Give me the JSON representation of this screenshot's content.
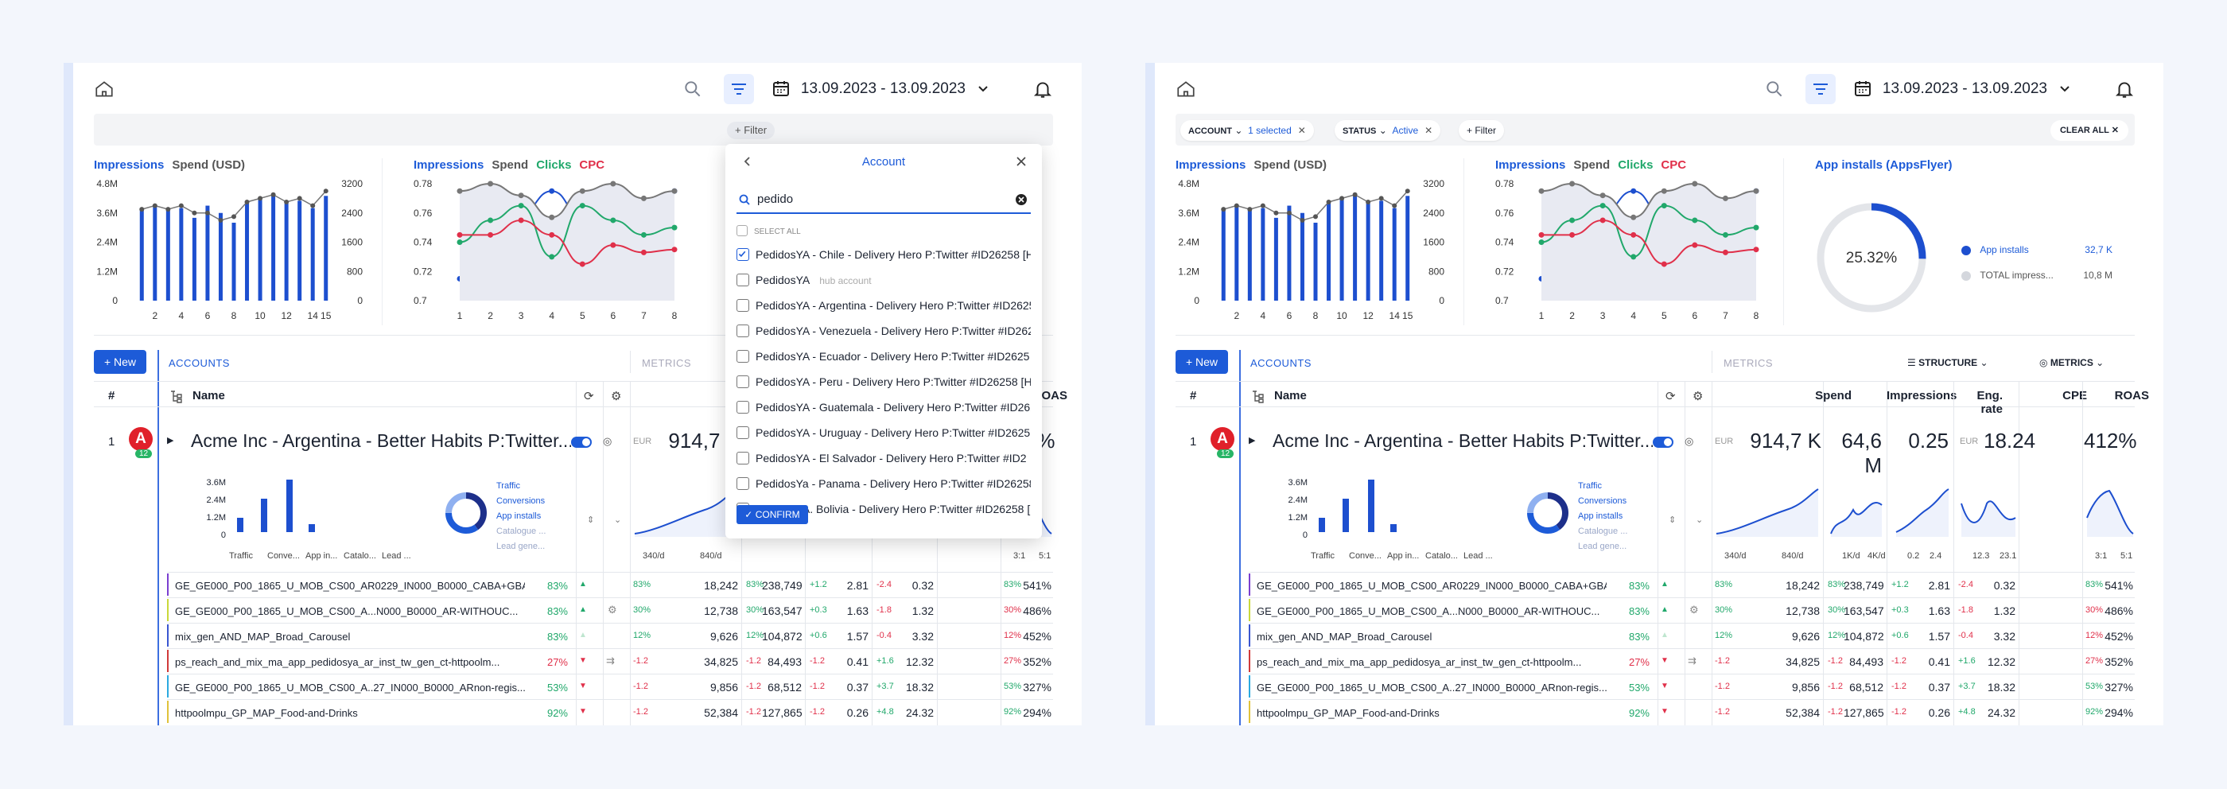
{
  "topbar": {
    "date_range": "13.09.2023 - 13.09.2023"
  },
  "filter": {
    "button_label": "Filter"
  },
  "chips": {
    "account_key": "ACCOUNT",
    "account_val": "1 selected",
    "status_key": "STATUS",
    "status_val": "Active",
    "filter_label": "Filter",
    "clear_all": "CLEAR ALL"
  },
  "chart1": {
    "title_a": "Impressions",
    "title_b": "Spend (USD)",
    "yleft": [
      "4.8M",
      "3.6M",
      "2.4M",
      "1.2M",
      "0"
    ],
    "yright": [
      "3200",
      "2400",
      "1600",
      "800",
      "0"
    ],
    "x": [
      "2",
      "4",
      "6",
      "8",
      "10",
      "12",
      "14",
      "15"
    ]
  },
  "chart2": {
    "t1": "Impressions",
    "t2": "Spend",
    "t3": "Clicks",
    "t4": "CPC",
    "yleft": [
      "0.78",
      "0.76",
      "0.74",
      "0.72",
      "0.7"
    ],
    "x": [
      "1",
      "2",
      "3",
      "4",
      "5",
      "6",
      "7",
      "8"
    ]
  },
  "chart3": {
    "title": "App installs (AppsFlyer)",
    "pct": "25.32%",
    "leg1": "App installs",
    "leg1v": "32,7 K",
    "leg2": "TOTAL impress...",
    "leg2v": "10,8 M"
  },
  "chart_data": [
    {
      "type": "bar",
      "title": "Impressions / Spend (USD)",
      "categories": [
        "1",
        "2",
        "3",
        "4",
        "5",
        "6",
        "7",
        "8",
        "9",
        "10",
        "11",
        "12",
        "13",
        "14",
        "15"
      ],
      "series": [
        {
          "name": "Impressions",
          "values": [
            3.8,
            3.9,
            3.7,
            3.8,
            3.4,
            3.9,
            3.6,
            3.2,
            4.0,
            4.2,
            4.4,
            4.0,
            4.1,
            3.8,
            4.3
          ]
        },
        {
          "name": "Spend (USD)",
          "values": [
            2500,
            2600,
            2500,
            2600,
            2400,
            2400,
            2200,
            2300,
            2700,
            2800,
            2900,
            2700,
            2800,
            2600,
            3000
          ]
        }
      ]
    },
    {
      "type": "line",
      "categories": [
        "1",
        "2",
        "3",
        "4",
        "5",
        "6",
        "7",
        "8"
      ],
      "series": [
        {
          "name": "Impressions",
          "values": [
            0.715,
            0.705,
            0.76,
            0.775,
            0.757,
            0.775,
            0.755,
            0.775
          ]
        },
        {
          "name": "Spend",
          "values": [
            0.775,
            0.78,
            0.772,
            0.757,
            0.775,
            0.78,
            0.77,
            0.775
          ]
        },
        {
          "name": "Clicks",
          "values": [
            0.74,
            0.755,
            0.765,
            0.73,
            0.765,
            0.755,
            0.745,
            0.75
          ]
        },
        {
          "name": "CPC",
          "values": [
            0.745,
            0.745,
            0.755,
            0.745,
            0.725,
            0.738,
            0.733,
            0.735
          ]
        }
      ]
    },
    {
      "type": "pie",
      "series": [
        {
          "name": "App installs",
          "values": [
            25.32
          ]
        },
        {
          "name": "TOTAL impress...",
          "values": [
            74.68
          ]
        }
      ]
    }
  ],
  "table": {
    "tab_accounts": "ACCOUNTS",
    "tab_metrics": "METRICS",
    "structure": "STRUCTURE",
    "new": "New",
    "hash": "#",
    "name": "Name",
    "spend": "Spend",
    "impressions": "Impressions",
    "eng": "Eng. rate",
    "cpe": "CPE",
    "roas": "ROAS",
    "acct": {
      "idx": "1",
      "badge": "12",
      "name": "Acme Inc - Argentina - Better Habits P:Twitter...",
      "cur": "EUR",
      "spend": "914,7 K",
      "impr": "64,6 M",
      "eng": "0.25",
      "cpe_cur": "EUR",
      "cpe": "18.24",
      "roas": "412%"
    },
    "mini": {
      "y": [
        "3.6M",
        "2.4M",
        "1.2M",
        "0"
      ],
      "cats": [
        "Traffic",
        "Conve...",
        "App in...",
        "Catalo...",
        "Lead ..."
      ],
      "leg": [
        "Traffic",
        "Conversions",
        "App installs",
        "Catalogue ...",
        "Lead gene..."
      ],
      "s1": "340/d",
      "s2": "840/d",
      "i1": "1K/d",
      "i2": "4K/d",
      "e1": "0.2",
      "e2": "2.4",
      "c1": "12.3",
      "c2": "23.1",
      "r1": "3:1",
      "r2": "5:1"
    },
    "rows": [
      {
        "name": "GE_GE000_P00_1865_U_MOB_CS00_AR0229_IN000_B0000_CABA+GBA",
        "pct": "83%",
        "sp": "83%",
        "spend": "18,242",
        "ip": "83%",
        "impr": "238,749",
        "ep": "+1.2",
        "eng": "2.81",
        "cp": "-2.4",
        "cpe": "0.32",
        "rp": "83%",
        "roas": "541%"
      },
      {
        "name": "GE_GE000_P00_1865_U_MOB_CS00_A...N000_B0000_AR-WITHOUC...",
        "pct": "83%",
        "sp": "30%",
        "spend": "12,738",
        "ip": "30%",
        "impr": "163,547",
        "ep": "+0.3",
        "eng": "1.63",
        "cp": "-1.8",
        "cpe": "1.32",
        "rp": "30%",
        "roas": "486%"
      },
      {
        "name": "mix_gen_AND_MAP_Broad_Carousel",
        "pct": "83%",
        "sp": "12%",
        "spend": "9,626",
        "ip": "12%",
        "impr": "104,872",
        "ep": "+0.6",
        "eng": "1.57",
        "cp": "-0.4",
        "cpe": "3.32",
        "rp": "12%",
        "roas": "452%"
      },
      {
        "name": "ps_reach_and_mix_ma_app_pedidosya_ar_inst_tw_gen_ct-httpoolm...",
        "pct": "27%",
        "sp": "-1.2",
        "spend": "34,825",
        "ip": "-1.2",
        "impr": "84,493",
        "ep": "-1.2",
        "eng": "0.41",
        "cp": "+1.6",
        "cpe": "12.32",
        "rp": "27%",
        "roas": "352%"
      },
      {
        "name": "GE_GE000_P00_1865_U_MOB_CS00_A..27_IN000_B0000_ARnon-regis...",
        "pct": "53%",
        "sp": "-1.2",
        "spend": "9,856",
        "ip": "-1.2",
        "impr": "68,512",
        "ep": "-1.2",
        "eng": "0.37",
        "cp": "+3.7",
        "cpe": "18.32",
        "rp": "53%",
        "roas": "327%"
      },
      {
        "name": "httpoolmpu_GP_MAP_Food-and-Drinks",
        "pct": "92%",
        "sp": "-1.2",
        "spend": "52,384",
        "ip": "-1.2",
        "impr": "127,865",
        "ep": "-1.2",
        "eng": "0.26",
        "cp": "+4.8",
        "cpe": "24.32",
        "rp": "92%",
        "roas": "294%"
      }
    ]
  },
  "dropdown": {
    "title": "Account",
    "search": "pedido",
    "select_all": "SELECT ALL",
    "confirm": "CONFIRM",
    "hub": "hub account",
    "items": [
      "PedidosYA - Chile - Delivery Hero P:Twitter #ID26258 [H",
      "PedidosYA",
      "PedidosYA - Argentina - Delivery Hero P:Twitter #ID2625",
      "PedidosYA - Venezuela - Delivery Hero P:Twitter #ID262",
      "PedidosYA - Ecuador - Delivery Hero P:Twitter #ID2625",
      "PedidosYA - Peru - Delivery Hero P:Twitter #ID26258 [H",
      "PedidosYA - Guatemala - Delivery Hero P:Twitter #ID262",
      "PedidosYA - Uruguay - Delivery Hero P:Twitter #ID2625",
      "PedidosYA - El Salvador - Delivery Hero P:Twitter #ID2",
      "PedidosYa - Panama - Delivery Hero P:Twitter #ID26258",
      "PedidosYA. Bolivia - Delivery Hero P:Twitter #ID26258 [I"
    ]
  }
}
